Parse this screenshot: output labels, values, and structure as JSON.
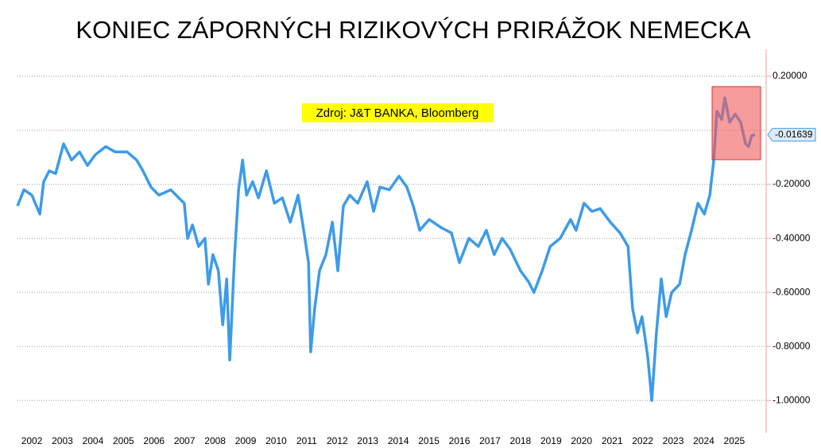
{
  "chart_data": {
    "type": "line",
    "title": "KONIEC ZÁPORNÝCH RIZIKOVÝCH PRIRÁŽOK NEMECKA",
    "annotation": "Zdroj: J&T BANKA, Bloomberg",
    "x": [
      2001.53,
      2001.74,
      2002.0,
      2002.26,
      2002.39,
      2002.57,
      2002.78,
      2003.04,
      2003.3,
      2003.56,
      2003.82,
      2004.08,
      2004.42,
      2004.73,
      2005.12,
      2005.43,
      2005.64,
      2005.9,
      2006.16,
      2006.55,
      2006.81,
      2006.99,
      2007.1,
      2007.26,
      2007.46,
      2007.67,
      2007.78,
      2007.93,
      2008.11,
      2008.25,
      2008.38,
      2008.48,
      2008.64,
      2008.77,
      2008.9,
      2009.03,
      2009.23,
      2009.42,
      2009.68,
      2009.94,
      2010.2,
      2010.46,
      2010.72,
      2010.9,
      2011.06,
      2011.13,
      2011.26,
      2011.42,
      2011.63,
      2011.84,
      2012.02,
      2012.2,
      2012.41,
      2012.67,
      2012.98,
      2013.19,
      2013.4,
      2013.71,
      2014.02,
      2014.28,
      2014.49,
      2014.7,
      2015.01,
      2015.4,
      2015.74,
      2016.0,
      2016.31,
      2016.62,
      2016.88,
      2017.14,
      2017.4,
      2017.66,
      2018.0,
      2018.26,
      2018.44,
      2018.71,
      2018.97,
      2019.3,
      2019.64,
      2019.82,
      2020.08,
      2020.34,
      2020.61,
      2020.94,
      2021.26,
      2021.52,
      2021.67,
      2021.83,
      2021.98,
      2022.17,
      2022.3,
      2022.45,
      2022.61,
      2022.77,
      2022.95,
      2023.21,
      2023.39,
      2023.6,
      2023.81,
      2024.02,
      2024.2,
      2024.33,
      2024.43,
      2024.59,
      2024.69,
      2024.85,
      2025.03,
      2025.21,
      2025.37,
      2025.47,
      2025.57,
      2025.68
    ],
    "series": [
      {
        "color": "#3d9be9",
        "values": [
          -0.28,
          -0.22,
          -0.24,
          -0.31,
          -0.19,
          -0.15,
          -0.16,
          -0.05,
          -0.11,
          -0.08,
          -0.13,
          -0.09,
          -0.06,
          -0.08,
          -0.08,
          -0.11,
          -0.15,
          -0.21,
          -0.24,
          -0.22,
          -0.25,
          -0.27,
          -0.4,
          -0.35,
          -0.43,
          -0.4,
          -0.57,
          -0.46,
          -0.52,
          -0.72,
          -0.55,
          -0.85,
          -0.46,
          -0.22,
          -0.11,
          -0.24,
          -0.19,
          -0.25,
          -0.15,
          -0.27,
          -0.25,
          -0.34,
          -0.24,
          -0.37,
          -0.49,
          -0.82,
          -0.66,
          -0.52,
          -0.46,
          -0.34,
          -0.52,
          -0.28,
          -0.24,
          -0.27,
          -0.19,
          -0.3,
          -0.21,
          -0.22,
          -0.17,
          -0.21,
          -0.28,
          -0.37,
          -0.33,
          -0.36,
          -0.38,
          -0.49,
          -0.4,
          -0.43,
          -0.37,
          -0.46,
          -0.4,
          -0.44,
          -0.52,
          -0.56,
          -0.6,
          -0.52,
          -0.43,
          -0.4,
          -0.33,
          -0.37,
          -0.27,
          -0.3,
          -0.29,
          -0.34,
          -0.38,
          -0.43,
          -0.66,
          -0.75,
          -0.69,
          -0.84,
          -1.0,
          -0.75,
          -0.55,
          -0.69,
          -0.6,
          -0.57,
          -0.46,
          -0.37,
          -0.27,
          -0.31,
          -0.24,
          -0.11,
          0.07,
          0.04,
          0.12,
          0.03,
          0.06,
          0.03,
          -0.05,
          -0.06,
          -0.02,
          -0.016
        ]
      }
    ],
    "last_value": -0.01639,
    "xlim": [
      2001.53,
      2025.94
    ],
    "xticks": [
      2002,
      2003,
      2004,
      2005,
      2006,
      2007,
      2008,
      2009,
      2010,
      2011,
      2012,
      2013,
      2014,
      2015,
      2016,
      2017,
      2018,
      2019,
      2020,
      2021,
      2022,
      2023,
      2024,
      2025
    ],
    "ylim": [
      -1.12,
      0.3
    ],
    "yticks": [
      {
        "value": 0.2,
        "label": "0.20000"
      },
      {
        "value": -0.2,
        "label": "-0.20000"
      },
      {
        "value": -0.4,
        "label": "-0.40000"
      },
      {
        "value": -0.6,
        "label": "-0.60000"
      },
      {
        "value": -0.8,
        "label": "-0.80000"
      },
      {
        "value": -1.0,
        "label": "-1.00000"
      }
    ],
    "grid": true
  }
}
